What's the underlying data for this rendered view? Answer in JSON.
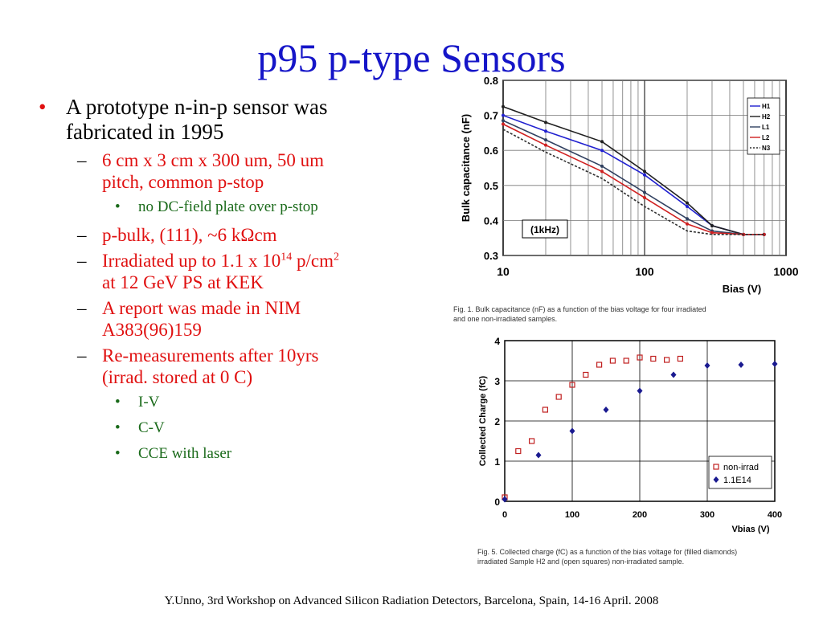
{
  "title": "p95 p-type Sensors",
  "bullets": {
    "b1_line1": "A prototype n-in-p sensor was",
    "b1_line2": "fabricated in 1995",
    "s1_line1": "6 cm x 3 cm x 300 um, 50 um",
    "s1_line2": "pitch, common p-stop",
    "ss1": "no DC-field plate over p-stop",
    "s2": "p-bulk, (111), ~6 kΩcm",
    "s3_a": "Irradiated up to 1.1 x 10",
    "s3_sup1": "14",
    "s3_b": " p/cm",
    "s3_sup2": "2",
    "s3_line2": "at 12 GeV PS at KEK",
    "s4_line1": "A report was made in NIM",
    "s4_line2": "A383(96)159",
    "s5_line1": "Re-measurements after 10yrs",
    "s5_line2": "(irrad. stored at 0 C)",
    "ss2": "I-V",
    "ss3": "C-V",
    "ss4": "CCE with laser",
    "marker_l1": "•",
    "marker_l2": "–",
    "marker_l3": "•"
  },
  "footer": "Y.Unno, 3rd Workshop on Advanced Silicon Radiation Detectors, Barcelona, Spain, 14-16 April. 2008",
  "colors": {
    "title": "#1515c8",
    "sub": "#e01010",
    "subsub": "#1a6a1a"
  },
  "chart_data": [
    {
      "type": "line",
      "ylabel": "Bulk capacitance (nF)",
      "xlabel": "Bias (V)",
      "x_scale": "log",
      "xlim": [
        10,
        1000
      ],
      "ylim": [
        0.3,
        0.8
      ],
      "x_ticks": [
        "10",
        "100",
        "1000"
      ],
      "y_ticks": [
        "0.3",
        "0.4",
        "0.5",
        "0.6",
        "0.7",
        "0.8"
      ],
      "annotation": "(1kHz)",
      "caption_line1": "Fig. 1. Bulk capacitance (nF) as a function of the bias voltage for four irradiated",
      "caption_line2": "and one non-irradiated samples.",
      "series": [
        {
          "name": "H1",
          "color": "#2020d0",
          "x": [
            10,
            20,
            50,
            100,
            200,
            300,
            500,
            700
          ],
          "values": [
            0.7,
            0.655,
            0.6,
            0.53,
            0.44,
            0.385,
            0.36,
            0.36
          ]
        },
        {
          "name": "H2",
          "color": "#202020",
          "x": [
            10,
            20,
            50,
            100,
            200,
            300,
            500,
            700
          ],
          "values": [
            0.725,
            0.68,
            0.625,
            0.54,
            0.45,
            0.385,
            0.36,
            0.36
          ]
        },
        {
          "name": "L1",
          "color": "#304060",
          "x": [
            10,
            20,
            50,
            100,
            200,
            300,
            500,
            700
          ],
          "values": [
            0.685,
            0.63,
            0.555,
            0.48,
            0.405,
            0.37,
            0.36,
            0.36
          ]
        },
        {
          "name": "L2",
          "color": "#d02020",
          "x": [
            10,
            20,
            50,
            100,
            200,
            300,
            500,
            700
          ],
          "values": [
            0.675,
            0.615,
            0.54,
            0.465,
            0.39,
            0.365,
            0.36,
            0.36
          ]
        },
        {
          "name": "N3",
          "color": "#303030",
          "x": [
            10,
            20,
            50,
            100,
            200,
            300,
            500,
            700
          ],
          "values": [
            0.66,
            0.595,
            0.52,
            0.44,
            0.37,
            0.36,
            0.36,
            0.36
          ]
        }
      ]
    },
    {
      "type": "scatter",
      "ylabel": "Collected Charge (fC)",
      "xlabel": "Vbias (V)",
      "xlim": [
        0,
        400
      ],
      "ylim": [
        0,
        4
      ],
      "x_ticks": [
        "0",
        "100",
        "200",
        "300",
        "400"
      ],
      "y_ticks": [
        "0",
        "1",
        "2",
        "3",
        "4"
      ],
      "caption_line1": "Fig. 5. Collected charge (fC) as a function of the bias voltage for (filled diamonds)",
      "caption_line2": "irradiated Sample H2 and (open squares) non-irradiated sample.",
      "series": [
        {
          "name": "non-irrad",
          "color": "#c02020",
          "marker": "open-square",
          "x": [
            0,
            20,
            40,
            60,
            80,
            100,
            120,
            140,
            160,
            180,
            200,
            220,
            240,
            260
          ],
          "values": [
            0.1,
            1.25,
            1.5,
            2.28,
            2.6,
            2.9,
            3.15,
            3.4,
            3.5,
            3.5,
            3.58,
            3.55,
            3.52,
            3.55
          ]
        },
        {
          "name": "1.1E14",
          "color": "#1a1a90",
          "marker": "filled-diamond",
          "x": [
            0,
            50,
            100,
            150,
            200,
            250,
            300,
            350,
            400
          ],
          "values": [
            0.05,
            1.15,
            1.75,
            2.28,
            2.75,
            3.15,
            3.38,
            3.4,
            3.42
          ]
        }
      ]
    }
  ]
}
